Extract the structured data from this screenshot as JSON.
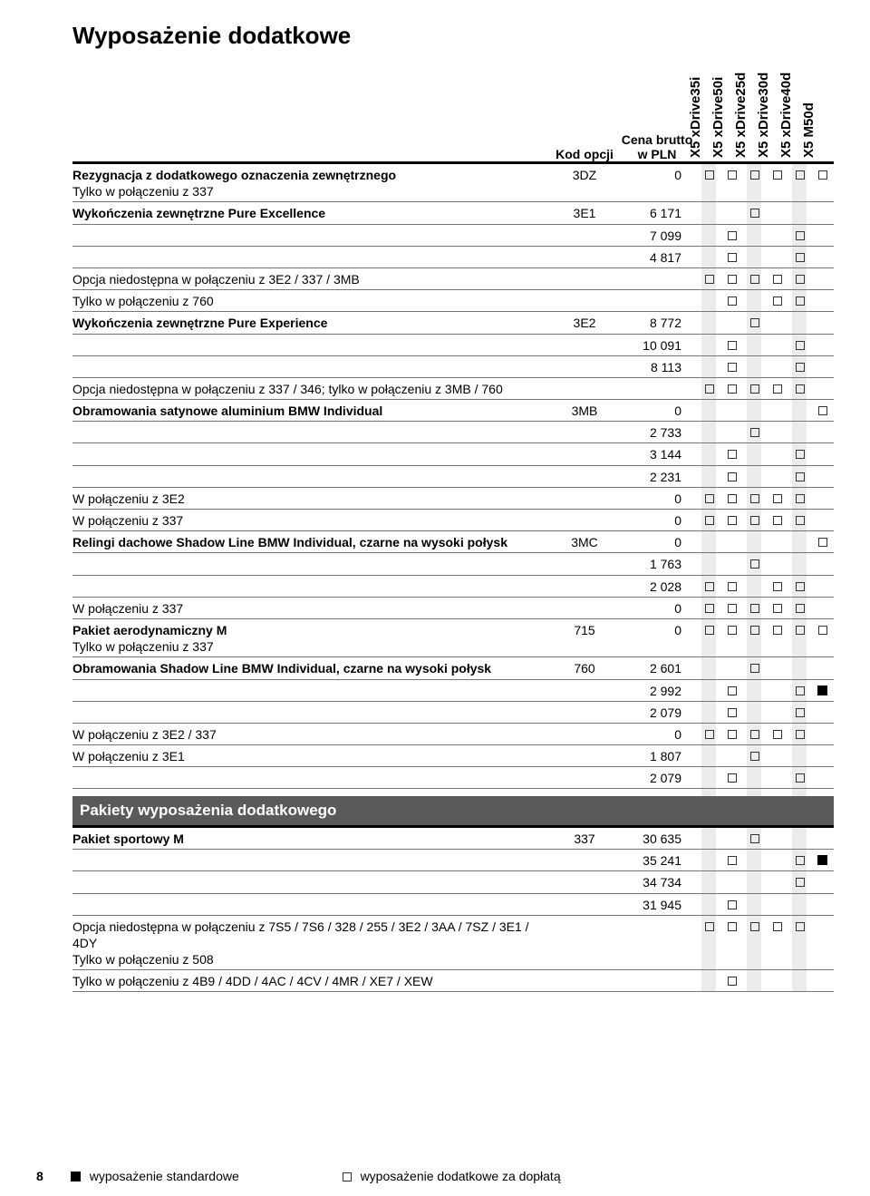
{
  "title": "Wyposażenie dodatkowe",
  "header": {
    "kod": "Kod opcji",
    "cena": "Cena brutto w PLN",
    "models": [
      "X5 xDrive35i",
      "X5 xDrive50i",
      "X5 xDrive25d",
      "X5 xDrive30d",
      "X5 xDrive40d",
      "X5 M50d"
    ]
  },
  "stripe_color": "#ececec",
  "model_col_width": 25,
  "rows": [
    {
      "desc": "Rezygnacja z dodatkowego oznaczenia zewnętrznego",
      "sub": "Tylko w połączeniu z 337",
      "kod": "3DZ",
      "cena": "0",
      "m": [
        "o",
        "o",
        "o",
        "o",
        "o",
        "o"
      ],
      "bold": true
    },
    {
      "desc": "Wykończenia zewnętrzne Pure Excellence",
      "kod": "3E1",
      "cena": "6 171",
      "m": [
        "",
        "",
        "o",
        "",
        "",
        ""
      ],
      "bold": true
    },
    {
      "desc": "",
      "cena": "7 099",
      "m": [
        "",
        "o",
        "",
        "",
        "o",
        ""
      ]
    },
    {
      "desc": "",
      "cena": "4 817",
      "m": [
        "",
        "o",
        "",
        "",
        "o",
        ""
      ]
    },
    {
      "desc": "Opcja niedostępna w połączeniu z 3E2 / 337 / 3MB",
      "m": [
        "o",
        "o",
        "o",
        "o",
        "o",
        ""
      ]
    },
    {
      "desc": "Tylko w połączeniu z 760",
      "m": [
        "",
        "o",
        "",
        "o",
        "o",
        ""
      ]
    },
    {
      "desc": "Wykończenia zewnętrzne Pure Experience",
      "kod": "3E2",
      "cena": "8 772",
      "m": [
        "",
        "",
        "o",
        "",
        "",
        ""
      ],
      "bold": true
    },
    {
      "desc": "",
      "cena": "10 091",
      "m": [
        "",
        "o",
        "",
        "",
        "o",
        ""
      ]
    },
    {
      "desc": "",
      "cena": "8 113",
      "m": [
        "",
        "o",
        "",
        "",
        "o",
        ""
      ]
    },
    {
      "desc": "Opcja niedostępna w połączeniu z 337 / 346; tylko w połączeniu z 3MB / 760",
      "m": [
        "o",
        "o",
        "o",
        "o",
        "o",
        ""
      ]
    },
    {
      "desc": "Obramowania satynowe aluminium BMW Individual",
      "kod": "3MB",
      "cena": "0",
      "m": [
        "",
        "",
        "",
        "",
        "",
        "o"
      ],
      "bold": true
    },
    {
      "desc": "",
      "cena": "2 733",
      "m": [
        "",
        "",
        "o",
        "",
        "",
        ""
      ]
    },
    {
      "desc": "",
      "cena": "3 144",
      "m": [
        "",
        "o",
        "",
        "",
        "o",
        ""
      ]
    },
    {
      "desc": "",
      "cena": "2 231",
      "m": [
        "",
        "o",
        "",
        "",
        "o",
        ""
      ]
    },
    {
      "desc": "W połączeniu z 3E2",
      "cena": "0",
      "m": [
        "o",
        "o",
        "o",
        "o",
        "o",
        ""
      ]
    },
    {
      "desc": "W połączeniu z 337",
      "cena": "0",
      "m": [
        "o",
        "o",
        "o",
        "o",
        "o",
        ""
      ]
    },
    {
      "desc": "Relingi dachowe Shadow Line BMW Individual, czarne na wysoki połysk",
      "kod": "3MC",
      "cena": "0",
      "m": [
        "",
        "",
        "",
        "",
        "",
        "o"
      ],
      "bold": true
    },
    {
      "desc": "",
      "cena": "1 763",
      "m": [
        "",
        "",
        "o",
        "",
        "",
        ""
      ]
    },
    {
      "desc": "",
      "cena": "2 028",
      "m": [
        "o",
        "o",
        "",
        "o",
        "o",
        ""
      ]
    },
    {
      "desc": "W połączeniu z 337",
      "cena": "0",
      "m": [
        "o",
        "o",
        "o",
        "o",
        "o",
        ""
      ]
    },
    {
      "desc": "Pakiet aerodynamiczny M",
      "sub": "Tylko w połączeniu z 337",
      "kod": "715",
      "cena": "0",
      "m": [
        "o",
        "o",
        "o",
        "o",
        "o",
        "o"
      ],
      "bold": true
    },
    {
      "desc": "Obramowania Shadow Line BMW Individual, czarne na wysoki połysk",
      "kod": "760",
      "cena": "2 601",
      "m": [
        "",
        "",
        "o",
        "",
        "",
        ""
      ],
      "bold": true
    },
    {
      "desc": "",
      "cena": "2 992",
      "m": [
        "",
        "o",
        "",
        "",
        "o",
        "f"
      ]
    },
    {
      "desc": "",
      "cena": "2 079",
      "m": [
        "",
        "o",
        "",
        "",
        "o",
        ""
      ]
    },
    {
      "desc": "W połączeniu z 3E2 / 337",
      "cena": "0",
      "m": [
        "o",
        "o",
        "o",
        "o",
        "o",
        ""
      ]
    },
    {
      "desc": "W połączeniu z 3E1",
      "cena": "1 807",
      "m": [
        "",
        "",
        "o",
        "",
        "",
        ""
      ]
    },
    {
      "desc": "",
      "cena": "2 079",
      "m": [
        "",
        "o",
        "",
        "",
        "o",
        ""
      ]
    }
  ],
  "section2_title": "Pakiety wyposażenia dodatkowego",
  "rows2": [
    {
      "desc": "Pakiet sportowy M",
      "kod": "337",
      "cena": "30 635",
      "m": [
        "",
        "",
        "o",
        "",
        "",
        ""
      ],
      "bold": true
    },
    {
      "desc": "",
      "cena": "35 241",
      "m": [
        "",
        "o",
        "",
        "",
        "o",
        "f"
      ]
    },
    {
      "desc": "",
      "cena": "34 734",
      "m": [
        "",
        "",
        "",
        "",
        "o",
        ""
      ]
    },
    {
      "desc": "",
      "cena": "31 945",
      "m": [
        "",
        "o",
        "",
        "",
        "",
        ""
      ]
    },
    {
      "desc": "Opcja niedostępna w połączeniu z 7S5 / 7S6 / 328 / 255 / 3E2 / 3AA / 7SZ / 3E1 / 4DY",
      "sub": "Tylko w połączeniu z 508",
      "m": [
        "o",
        "o",
        "o",
        "o",
        "o",
        ""
      ]
    },
    {
      "desc": "Tylko w połączeniu z 4B9 / 4DD / 4AC / 4CV / 4MR / XE7 / XEW",
      "m": [
        "",
        "o",
        "",
        "",
        "",
        ""
      ]
    }
  ],
  "footer": {
    "page": "8",
    "legend1": "wyposażenie standardowe",
    "legend2": "wyposażenie dodatkowe za dopłatą"
  }
}
